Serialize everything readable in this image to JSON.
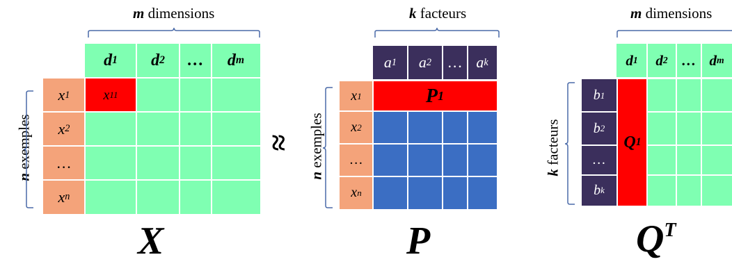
{
  "matrix_x": {
    "top_label_bold": "m",
    "top_label_rest": " dimensions",
    "side_label_bold": "n",
    "side_label_rest": " exemples",
    "col_headers": [
      {
        "base": "d",
        "sub": "1"
      },
      {
        "base": "d",
        "sub": "2"
      },
      {
        "base": "…",
        "sub": ""
      },
      {
        "base": "d",
        "sub": "m"
      }
    ],
    "row_headers": [
      {
        "base": "x",
        "sub": "1"
      },
      {
        "base": "x",
        "sub": "2"
      },
      {
        "base": "…",
        "sub": ""
      },
      {
        "base": "x",
        "sub": "n"
      }
    ],
    "highlight_cell": {
      "base": "x",
      "sub": "11"
    },
    "name": "X"
  },
  "approx_symbol": "≈",
  "matrix_p": {
    "top_label_bold": "k",
    "top_label_rest": " facteurs",
    "side_label_bold": "n",
    "side_label_rest": " exemples",
    "col_headers": [
      {
        "base": "a",
        "sub": "1"
      },
      {
        "base": "a",
        "sub": "2"
      },
      {
        "base": "…",
        "sub": ""
      },
      {
        "base": "a",
        "sub": "k"
      }
    ],
    "row_headers": [
      {
        "base": "x",
        "sub": "1"
      },
      {
        "base": "x",
        "sub": "2"
      },
      {
        "base": "…",
        "sub": ""
      },
      {
        "base": "x",
        "sub": "n"
      }
    ],
    "highlight_row": {
      "base": "P",
      "sub": "1"
    },
    "name": "P"
  },
  "matrix_qt": {
    "top_label_bold": "m",
    "top_label_rest": " dimensions",
    "side_label_bold": "k",
    "side_label_rest": " facteurs",
    "col_headers": [
      {
        "base": "d",
        "sub": "1"
      },
      {
        "base": "d",
        "sub": "2"
      },
      {
        "base": "…",
        "sub": ""
      },
      {
        "base": "d",
        "sub": "m"
      }
    ],
    "row_headers": [
      {
        "base": "b",
        "sub": "1"
      },
      {
        "base": "b",
        "sub": "2"
      },
      {
        "base": "…",
        "sub": ""
      },
      {
        "base": "b",
        "sub": "k"
      }
    ],
    "highlight_col": {
      "base": "Q",
      "sub": "1"
    },
    "name_base": "Q",
    "name_sup": "T"
  },
  "colors": {
    "green": "#7fffb2",
    "orange": "#f4a37a",
    "purple": "#3b2f5c",
    "blue": "#3b6ec3",
    "red": "#ff0000",
    "brace": "#4a6aa8"
  }
}
